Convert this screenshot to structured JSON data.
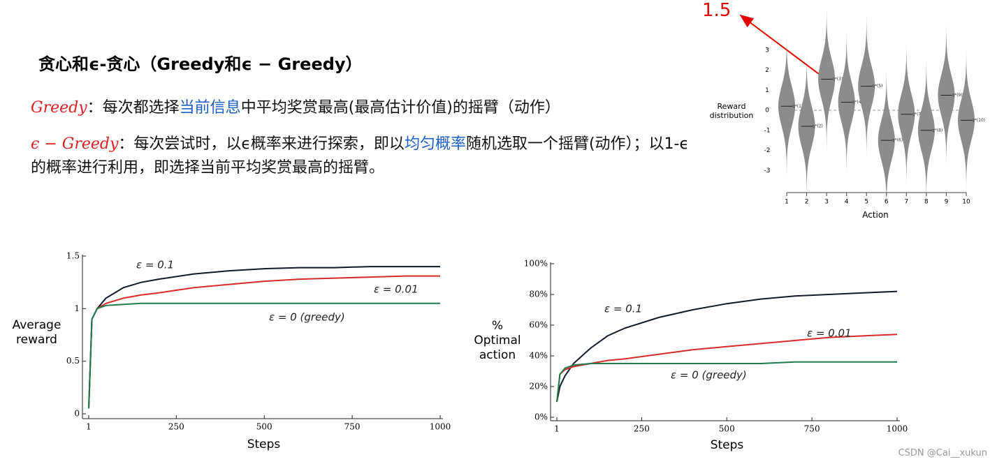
{
  "title": "贪心和ϵ-贪心（Greedy和ϵ − Greedy）",
  "paragraphs": [
    [
      "Greedy",
      "：每次都选择",
      "当前信息",
      "中平均奖赏最高(最高估计价值)的摇臂（动作）"
    ],
    [
      "ϵ − Greedy",
      "：每次尝试时，以ϵ概率来进行探索，即以",
      "均匀概率",
      "随机选取一个摇臂(动作）；以1-ϵ的概率进行利用，即选择当前平均奖赏最高的摇臂。"
    ]
  ],
  "annotation": "1.5",
  "watermark": "CSDN @Cai__xukun",
  "chart_data": [
    {
      "type": "violin",
      "y_label": "Reward distribution",
      "x_label": "Action",
      "categories": [
        "1",
        "2",
        "3",
        "4",
        "5",
        "6",
        "7",
        "8",
        "9",
        "10"
      ],
      "values": [
        0.2,
        -0.8,
        1.55,
        0.4,
        1.2,
        -1.5,
        -0.2,
        -1.0,
        0.75,
        -0.5
      ],
      "point_labels": [
        "q*(1)",
        "q*(2)",
        "q*(3)",
        "q*(4)",
        "q*(5)",
        "q*(6)",
        "q*(7)",
        "q*(8)",
        "q*(9)",
        "q*(10)"
      ],
      "ylim": [
        -4,
        4
      ],
      "yticks": [
        -3,
        -2,
        -1,
        0,
        1,
        2,
        3
      ],
      "color": "#8c8c8c"
    },
    {
      "type": "line",
      "x_label": "Steps",
      "y_label": "Average reward",
      "x": [
        1,
        10,
        25,
        50,
        100,
        150,
        200,
        300,
        400,
        500,
        600,
        700,
        800,
        900,
        1000
      ],
      "series": [
        {
          "name": "ε = 0.1",
          "color": "#111a2a",
          "values": [
            0.05,
            0.9,
            1.0,
            1.1,
            1.2,
            1.25,
            1.28,
            1.33,
            1.36,
            1.38,
            1.39,
            1.39,
            1.4,
            1.4,
            1.4
          ]
        },
        {
          "name": "ε = 0.01",
          "color": "#d62b2b",
          "values": [
            0.05,
            0.9,
            1.0,
            1.05,
            1.1,
            1.13,
            1.15,
            1.2,
            1.23,
            1.26,
            1.28,
            1.29,
            1.3,
            1.31,
            1.31
          ]
        },
        {
          "name": "ε = 0 (greedy)",
          "color": "#1f7a4d",
          "values": [
            0.05,
            0.9,
            1.0,
            1.03,
            1.04,
            1.05,
            1.05,
            1.05,
            1.05,
            1.05,
            1.05,
            1.05,
            1.05,
            1.05,
            1.05
          ]
        }
      ],
      "xlim": [
        1,
        1000
      ],
      "xticks": [
        1,
        250,
        500,
        750,
        1000
      ],
      "ylim": [
        0,
        1.5
      ],
      "yticks": [
        0,
        0.5,
        1,
        1.5
      ]
    },
    {
      "type": "line",
      "x_label": "Steps",
      "y_label": "% Optimal action",
      "x": [
        1,
        10,
        25,
        50,
        100,
        150,
        200,
        300,
        400,
        500,
        600,
        700,
        800,
        900,
        1000
      ],
      "series": [
        {
          "name": "ε = 0.1",
          "color": "#111a2a",
          "values": [
            10,
            20,
            27,
            35,
            45,
            53,
            58,
            65,
            70,
            74,
            77,
            79,
            80,
            81,
            82
          ]
        },
        {
          "name": "ε = 0.01",
          "color": "#d62b2b",
          "values": [
            10,
            28,
            31,
            33,
            35,
            37,
            38,
            41,
            44,
            46,
            48,
            50,
            52,
            53,
            54
          ]
        },
        {
          "name": "ε = 0 (greedy)",
          "color": "#1f7a4d",
          "values": [
            10,
            28,
            32,
            34,
            35,
            35,
            35,
            35,
            35,
            35,
            35,
            36,
            36,
            36,
            36
          ]
        }
      ],
      "xlim": [
        1,
        1000
      ],
      "xticks": [
        1,
        250,
        500,
        750,
        1000
      ],
      "ylim": [
        0,
        100
      ],
      "yticks": [
        {
          "value": 0,
          "label": "0%"
        },
        {
          "value": 20,
          "label": "20%"
        },
        {
          "value": 40,
          "label": "40%"
        },
        {
          "value": 60,
          "label": "60%"
        },
        {
          "value": 80,
          "label": "80%"
        },
        {
          "value": 100,
          "label": "100%"
        }
      ]
    }
  ]
}
